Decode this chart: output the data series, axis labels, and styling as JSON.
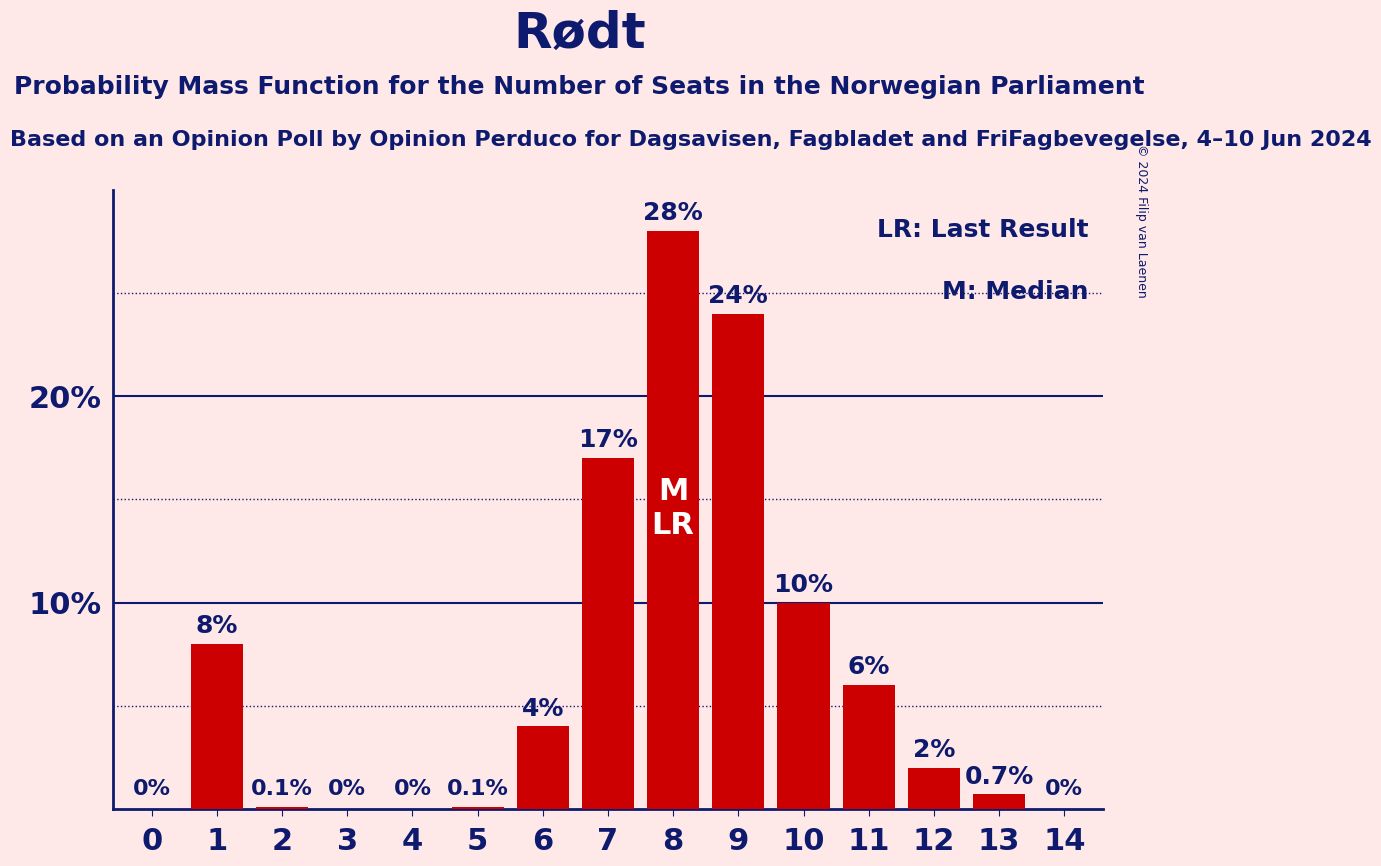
{
  "title": "Rødt",
  "subtitle": "Probability Mass Function for the Number of Seats in the Norwegian Parliament",
  "subsubtitle": "Based on an Opinion Poll by Opinion Perduco for Dagsavisen, Fagbladet and FriFagbevegelse, 4–10 Jun 2024",
  "copyright": "© 2024 Filip van Laenen",
  "categories": [
    0,
    1,
    2,
    3,
    4,
    5,
    6,
    7,
    8,
    9,
    10,
    11,
    12,
    13,
    14
  ],
  "values": [
    0.0,
    8.0,
    0.1,
    0.0,
    0.0,
    0.1,
    4.0,
    17.0,
    28.0,
    24.0,
    10.0,
    6.0,
    2.0,
    0.7,
    0.0
  ],
  "bar_color": "#CC0000",
  "bg_color": "#FFE8E8",
  "text_color": "#0D1A6E",
  "ylim": [
    0,
    30
  ],
  "solid_yticks": [
    10,
    20
  ],
  "dotted_yticks": [
    5,
    15,
    25
  ],
  "median_bar": 8,
  "lr_bar": 8,
  "label_annotations": {
    "0": "0%",
    "1": "8%",
    "2": "0.1%",
    "3": "0%",
    "4": "0%",
    "5": "0.1%",
    "6": "4%",
    "7": "17%",
    "8": "28%",
    "9": "24%",
    "10": "10%",
    "11": "6%",
    "12": "2%",
    "13": "0.7%",
    "14": "0%"
  },
  "title_fontsize": 36,
  "subtitle_fontsize": 18,
  "subsubtitle_fontsize": 16,
  "tick_fontsize": 22,
  "bar_label_fontsize": 18,
  "small_label_fontsize": 16,
  "legend_fontsize": 18,
  "ml_fontsize": 22
}
